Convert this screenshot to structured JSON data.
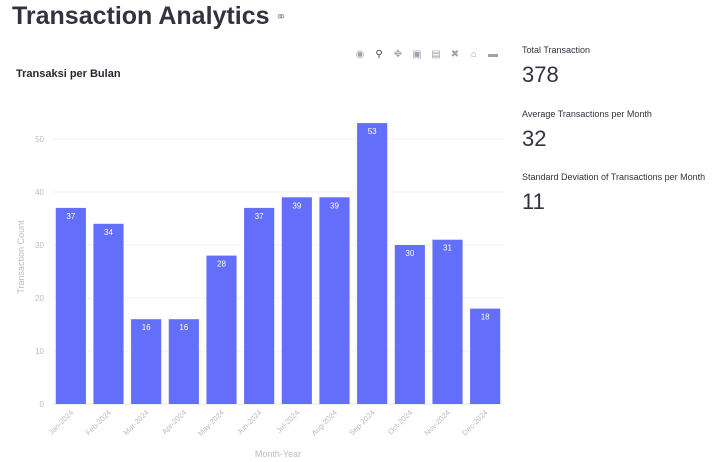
{
  "page": {
    "title": "Transaction Analytics"
  },
  "toolbar": {
    "icons": [
      "camera-icon",
      "zoom-icon",
      "pan-icon",
      "zoom-in-icon",
      "zoom-out-icon",
      "autoscale-icon",
      "reset-axes-icon",
      "plotly-logo-icon"
    ]
  },
  "chart_title": "Transaksi per Bulan",
  "chart_data": {
    "type": "bar",
    "title": "Transaksi per Bulan",
    "xlabel": "Month-Year",
    "ylabel": "Transaction Count",
    "categories": [
      "Jan-2024",
      "Feb-2024",
      "Mar-2024",
      "Apr-2024",
      "May-2024",
      "Jun-2024",
      "Jul-2024",
      "Aug-2024",
      "Sep-2024",
      "Oct-2024",
      "Nov-2024",
      "Dec-2024"
    ],
    "values": [
      37,
      34,
      16,
      16,
      28,
      37,
      39,
      39,
      53,
      30,
      31,
      18
    ],
    "ylim": [
      0,
      60
    ],
    "yticks": [
      0,
      10,
      20,
      30,
      40,
      50
    ],
    "bar_color": "#636efa",
    "grid": true,
    "data_labels": true
  },
  "metrics": [
    {
      "label": "Total Transaction",
      "value": "378"
    },
    {
      "label": "Average Transactions per Month",
      "value": "32"
    },
    {
      "label": "Standard Deviation of Transactions per Month",
      "value": "11"
    }
  ]
}
